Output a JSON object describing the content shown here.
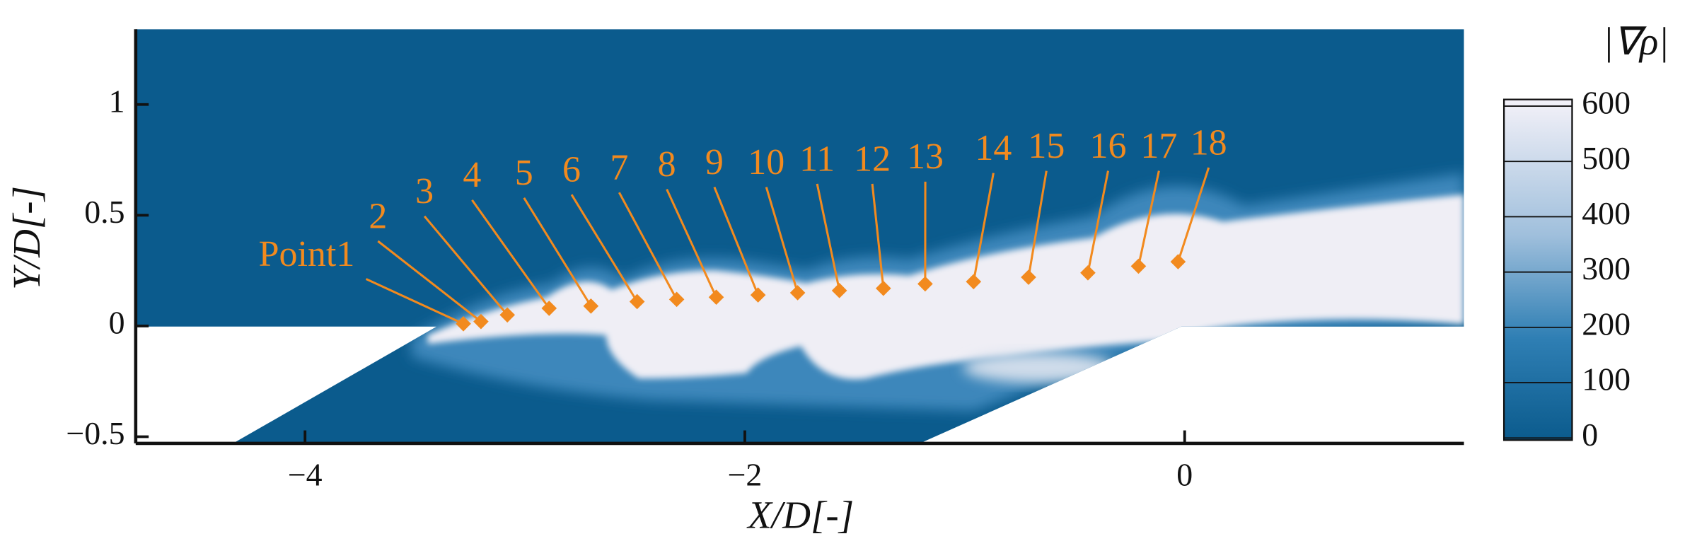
{
  "chart_data": {
    "type": "scatter",
    "xlabel": "X/D[-]",
    "ylabel": "Y/D[-]",
    "colorbar_title": "|∇ρ|",
    "xlim": [
      -4.77,
      1.27
    ],
    "ylim": [
      -0.53,
      1.34
    ],
    "xticks": [
      {
        "value": -4,
        "label": "−4"
      },
      {
        "value": -2,
        "label": "−2"
      },
      0
    ],
    "yticks": [
      {
        "value": -0.5,
        "label": "−0.5"
      },
      0,
      0.5,
      1
    ],
    "clim": [
      0,
      612
    ],
    "cticks": [
      0,
      100,
      200,
      300,
      400,
      500,
      600
    ],
    "color": "#f28a1e",
    "labels": [
      "Point1",
      "2",
      "3",
      "4",
      "5",
      "6",
      "7",
      "8",
      "9",
      "10",
      "11",
      "12",
      "13",
      "14",
      "15",
      "16",
      "17",
      "18"
    ],
    "x": [
      -3.28,
      -3.2,
      -3.08,
      -2.89,
      -2.7,
      -2.49,
      -2.31,
      -2.13,
      -1.94,
      -1.76,
      -1.57,
      -1.37,
      -1.18,
      -0.96,
      -0.71,
      -0.44,
      -0.21,
      -0.03
    ],
    "values": [
      0.01,
      0.02,
      0.05,
      0.08,
      0.09,
      0.11,
      0.12,
      0.13,
      0.14,
      0.15,
      0.16,
      0.17,
      0.19,
      0.2,
      0.22,
      0.24,
      0.27,
      0.29
    ]
  }
}
